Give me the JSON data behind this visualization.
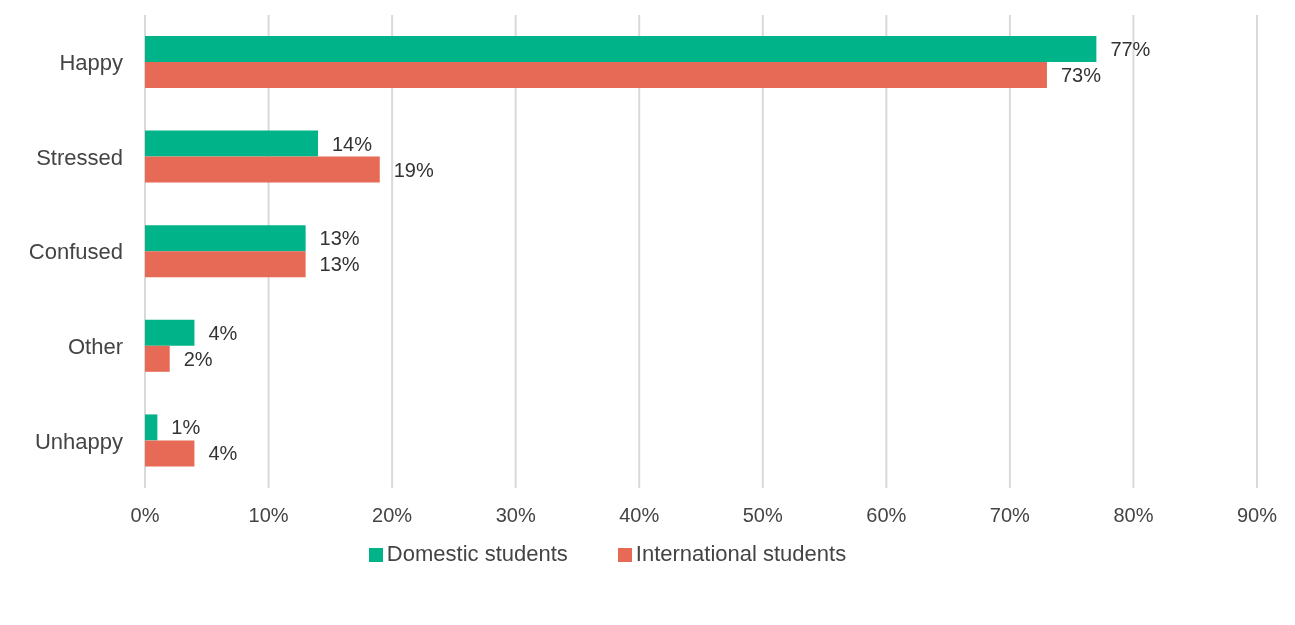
{
  "chart_data": {
    "type": "bar",
    "orientation": "horizontal",
    "categories": [
      "Happy",
      "Stressed",
      "Confused",
      "Other",
      "Unhappy"
    ],
    "series": [
      {
        "name": "Domestic students",
        "color": "#00b388",
        "values": [
          77,
          14,
          13,
          4,
          1
        ],
        "value_labels": [
          "77%",
          "14%",
          "13%",
          "4%",
          "1%"
        ]
      },
      {
        "name": "International students",
        "color": "#e66a55",
        "values": [
          73,
          19,
          13,
          2,
          4
        ],
        "value_labels": [
          "73%",
          "19%",
          "13%",
          "2%",
          "4%"
        ]
      }
    ],
    "xlim": [
      0,
      90
    ],
    "xticks": [
      {
        "value": 0,
        "label": "0%"
      },
      {
        "value": 10,
        "label": "10%"
      },
      {
        "value": 20,
        "label": "20%"
      },
      {
        "value": 30,
        "label": "30%"
      },
      {
        "value": 40,
        "label": "40%"
      },
      {
        "value": 50,
        "label": "50%"
      },
      {
        "value": 60,
        "label": "60%"
      },
      {
        "value": 70,
        "label": "70%"
      },
      {
        "value": 80,
        "label": "80%"
      },
      {
        "value": 90,
        "label": "90%"
      }
    ],
    "grid": "x",
    "legend": "bottom"
  }
}
